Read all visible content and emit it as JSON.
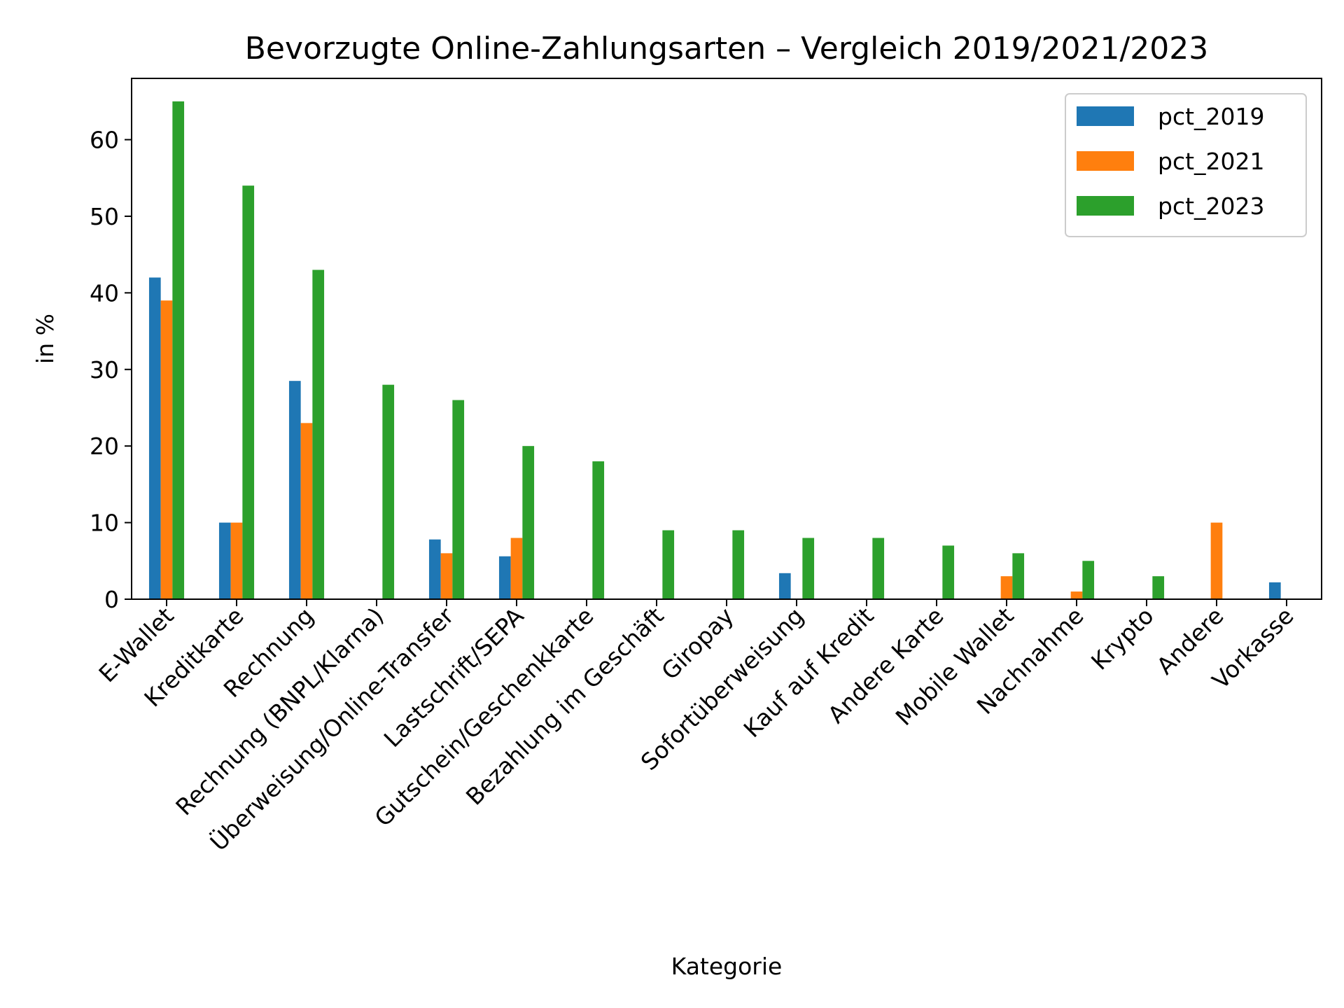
{
  "chart_data": {
    "type": "bar",
    "title": "Bevorzugte Online-Zahlungsarten – Vergleich 2019/2021/2023",
    "xlabel": "Kategorie",
    "ylabel": "in %",
    "ylim": [
      0,
      68
    ],
    "yticks": [
      0,
      10,
      20,
      30,
      40,
      50,
      60
    ],
    "legend_position": "top-right",
    "grid": false,
    "categories": [
      "E-Wallet",
      "Kreditkarte",
      "Rechnung",
      "Rechnung (BNPL/Klarna)",
      "Überweisung/Online-Transfer",
      "Lastschrift/SEPA",
      "Gutschein/Geschenkkarte",
      "Bezahlung im Geschäft",
      "Giropay",
      "Sofortüberweisung",
      "Kauf auf Kredit",
      "Andere Karte",
      "Mobile Wallet",
      "Nachnahme",
      "Krypto",
      "Andere",
      "Vorkasse"
    ],
    "series": [
      {
        "name": "pct_2019",
        "color": "#1f77b4",
        "values": [
          42,
          10,
          28.5,
          null,
          7.8,
          5.6,
          null,
          null,
          null,
          3.4,
          null,
          null,
          null,
          null,
          null,
          null,
          2.2
        ]
      },
      {
        "name": "pct_2021",
        "color": "#ff7f0e",
        "values": [
          39,
          10,
          23,
          null,
          6,
          8,
          null,
          null,
          null,
          null,
          null,
          null,
          3,
          1,
          null,
          10,
          null
        ]
      },
      {
        "name": "pct_2023",
        "color": "#2ca02c",
        "values": [
          65,
          54,
          43,
          28,
          26,
          20,
          18,
          9,
          9,
          8,
          8,
          7,
          6,
          5,
          3,
          null,
          null
        ]
      }
    ]
  }
}
